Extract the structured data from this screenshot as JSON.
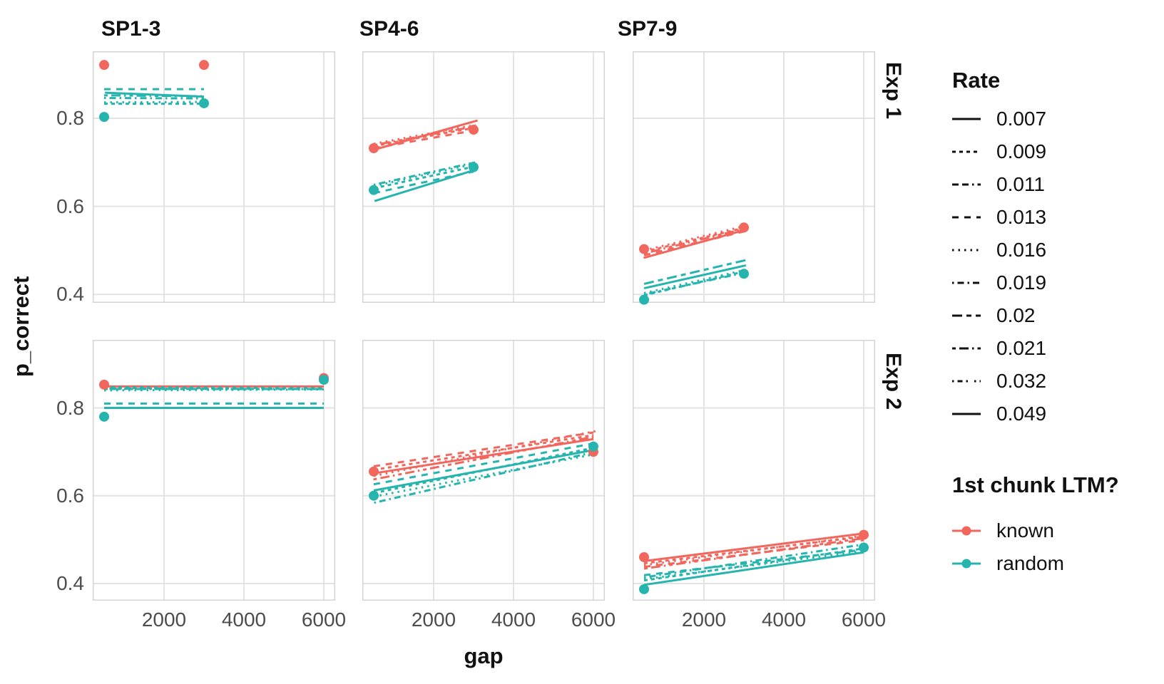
{
  "axes": {
    "x_label": "gap",
    "y_label": "p_correct"
  },
  "facets": {
    "columns": [
      "SP1-3",
      "SP4-6",
      "SP7-9"
    ],
    "rows": [
      "Exp 1",
      "Exp 2"
    ]
  },
  "legend": {
    "rate": {
      "title": "Rate",
      "items": [
        {
          "label": "0.007",
          "rate": "0.007"
        },
        {
          "label": "0.009",
          "rate": "0.009"
        },
        {
          "label": "0.011",
          "rate": "0.011"
        },
        {
          "label": "0.013",
          "rate": "0.013"
        },
        {
          "label": "0.016",
          "rate": "0.016"
        },
        {
          "label": "0.019",
          "rate": "0.019"
        },
        {
          "label": "0.02",
          "rate": "0.02"
        },
        {
          "label": "0.021",
          "rate": "0.021"
        },
        {
          "label": "0.032",
          "rate": "0.032"
        },
        {
          "label": "0.049",
          "rate": "0.049"
        }
      ]
    },
    "group": {
      "title": "1st chunk LTM?",
      "items": [
        {
          "label": "known",
          "group": "known"
        },
        {
          "label": "random",
          "group": "random"
        }
      ]
    }
  },
  "colors": {
    "known": "#F2675D",
    "random": "#26B4AE",
    "grid": "#E3E3E3",
    "panel_border": "#D4D4D4",
    "tick_text": "#4D4D4D",
    "text": "#111111"
  },
  "chart_data": {
    "type": "line",
    "title": "",
    "xlabel": "gap",
    "ylabel": "p_correct",
    "x_domain": [
      214,
      6286
    ],
    "x_ticks": [
      2000,
      4000,
      6000
    ],
    "y_ticks": [
      0.8,
      0.6,
      0.4
    ],
    "row_y_domains": [
      [
        0.381,
        0.952
      ],
      [
        0.361,
        0.955
      ]
    ],
    "grid": true,
    "legend_position": "right",
    "panels": [
      {
        "row": 0,
        "col": 0,
        "facet_row": "Exp 1",
        "facet_col": "SP1-3",
        "points": [
          {
            "group": "known",
            "x": 500,
            "y": 0.921
          },
          {
            "group": "known",
            "x": 3000,
            "y": 0.921
          },
          {
            "group": "random",
            "x": 500,
            "y": 0.803
          },
          {
            "group": "random",
            "x": 3000,
            "y": 0.834
          }
        ],
        "lines": [
          {
            "group": "random",
            "rate": "0.013",
            "x1": 500,
            "y1": 0.866,
            "x2": 3000,
            "y2": 0.866
          },
          {
            "group": "random",
            "rate": "0.049",
            "x1": 520,
            "y1": 0.858,
            "x2": 3000,
            "y2": 0.849
          },
          {
            "group": "random",
            "rate": "0.021",
            "x1": 500,
            "y1": 0.852,
            "x2": 3000,
            "y2": 0.85
          },
          {
            "group": "random",
            "rate": "0.019",
            "x1": 500,
            "y1": 0.846,
            "x2": 3000,
            "y2": 0.845
          },
          {
            "group": "random",
            "rate": "0.016",
            "x1": 500,
            "y1": 0.836,
            "x2": 3000,
            "y2": 0.837
          },
          {
            "group": "random",
            "rate": "0.009",
            "x1": 500,
            "y1": 0.833,
            "x2": 3000,
            "y2": 0.833
          }
        ]
      },
      {
        "row": 0,
        "col": 1,
        "facet_row": "Exp 1",
        "facet_col": "SP4-6",
        "points": [
          {
            "group": "known",
            "x": 500,
            "y": 0.732
          },
          {
            "group": "known",
            "x": 3000,
            "y": 0.774
          },
          {
            "group": "random",
            "x": 500,
            "y": 0.637
          },
          {
            "group": "random",
            "x": 3000,
            "y": 0.689
          }
        ],
        "lines": [
          {
            "group": "known",
            "rate": "0.049",
            "x1": 490,
            "y1": 0.728,
            "x2": 3100,
            "y2": 0.795
          },
          {
            "group": "known",
            "rate": "0.009",
            "x1": 500,
            "y1": 0.737,
            "x2": 3000,
            "y2": 0.778
          },
          {
            "group": "known",
            "rate": "0.013",
            "x1": 500,
            "y1": 0.732,
            "x2": 3000,
            "y2": 0.772
          },
          {
            "group": "known",
            "rate": "0.021",
            "x1": 500,
            "y1": 0.739,
            "x2": 3000,
            "y2": 0.781
          },
          {
            "group": "known",
            "rate": "0.016",
            "x1": 500,
            "y1": 0.742,
            "x2": 3050,
            "y2": 0.785
          },
          {
            "group": "random",
            "rate": "0.049",
            "x1": 520,
            "y1": 0.612,
            "x2": 3080,
            "y2": 0.684
          },
          {
            "group": "random",
            "rate": "0.016",
            "x1": 500,
            "y1": 0.646,
            "x2": 3000,
            "y2": 0.696
          },
          {
            "group": "random",
            "rate": "0.009",
            "x1": 500,
            "y1": 0.641,
            "x2": 3000,
            "y2": 0.69
          },
          {
            "group": "random",
            "rate": "0.013",
            "x1": 500,
            "y1": 0.63,
            "x2": 3000,
            "y2": 0.679
          },
          {
            "group": "random",
            "rate": "0.019",
            "x1": 500,
            "y1": 0.649,
            "x2": 3050,
            "y2": 0.7
          }
        ]
      },
      {
        "row": 0,
        "col": 2,
        "facet_row": "Exp 1",
        "facet_col": "SP7-9",
        "points": [
          {
            "group": "known",
            "x": 500,
            "y": 0.503
          },
          {
            "group": "known",
            "x": 3000,
            "y": 0.552
          },
          {
            "group": "random",
            "x": 500,
            "y": 0.388
          },
          {
            "group": "random",
            "x": 3000,
            "y": 0.447
          }
        ],
        "lines": [
          {
            "group": "known",
            "rate": "0.049",
            "x1": 490,
            "y1": 0.483,
            "x2": 3050,
            "y2": 0.547
          },
          {
            "group": "known",
            "rate": "0.009",
            "x1": 500,
            "y1": 0.497,
            "x2": 3000,
            "y2": 0.551
          },
          {
            "group": "known",
            "rate": "0.013",
            "x1": 500,
            "y1": 0.489,
            "x2": 3050,
            "y2": 0.544
          },
          {
            "group": "known",
            "rate": "0.016",
            "x1": 500,
            "y1": 0.5,
            "x2": 3050,
            "y2": 0.556
          },
          {
            "group": "known",
            "rate": "0.021",
            "x1": 500,
            "y1": 0.493,
            "x2": 3000,
            "y2": 0.549
          },
          {
            "group": "random",
            "rate": "0.02",
            "x1": 500,
            "y1": 0.424,
            "x2": 3100,
            "y2": 0.479
          },
          {
            "group": "random",
            "rate": "0.049",
            "x1": 500,
            "y1": 0.414,
            "x2": 3050,
            "y2": 0.466
          },
          {
            "group": "random",
            "rate": "0.009",
            "x1": 500,
            "y1": 0.398,
            "x2": 3000,
            "y2": 0.452
          },
          {
            "group": "random",
            "rate": "0.016",
            "x1": 500,
            "y1": 0.403,
            "x2": 3050,
            "y2": 0.456
          },
          {
            "group": "random",
            "rate": "0.019",
            "x1": 500,
            "y1": 0.4,
            "x2": 3000,
            "y2": 0.449
          }
        ]
      },
      {
        "row": 1,
        "col": 0,
        "facet_row": "Exp 2",
        "facet_col": "SP1-3",
        "points": [
          {
            "group": "known",
            "x": 500,
            "y": 0.853
          },
          {
            "group": "known",
            "x": 6000,
            "y": 0.868
          },
          {
            "group": "random",
            "x": 500,
            "y": 0.78
          },
          {
            "group": "random",
            "x": 6000,
            "y": 0.864
          }
        ],
        "lines": [
          {
            "group": "known",
            "rate": "0.049",
            "x1": 500,
            "y1": 0.849,
            "x2": 6000,
            "y2": 0.849
          },
          {
            "group": "known",
            "rate": "0.009",
            "x1": 500,
            "y1": 0.845,
            "x2": 6000,
            "y2": 0.846
          },
          {
            "group": "random",
            "rate": "0.009",
            "x1": 500,
            "y1": 0.847,
            "x2": 6000,
            "y2": 0.845
          },
          {
            "group": "random",
            "rate": "0.021",
            "x1": 500,
            "y1": 0.843,
            "x2": 6000,
            "y2": 0.843
          },
          {
            "group": "random",
            "rate": "0.019",
            "x1": 500,
            "y1": 0.844,
            "x2": 6000,
            "y2": 0.843
          },
          {
            "group": "random",
            "rate": "0.016",
            "x1": 500,
            "y1": 0.84,
            "x2": 6000,
            "y2": 0.842
          },
          {
            "group": "random",
            "rate": "0.013",
            "x1": 500,
            "y1": 0.81,
            "x2": 6000,
            "y2": 0.81
          },
          {
            "group": "random",
            "rate": "0.049",
            "x1": 500,
            "y1": 0.8,
            "x2": 6000,
            "y2": 0.8
          }
        ]
      },
      {
        "row": 1,
        "col": 1,
        "facet_row": "Exp 2",
        "facet_col": "SP4-6",
        "points": [
          {
            "group": "known",
            "x": 500,
            "y": 0.655
          },
          {
            "group": "known",
            "x": 6000,
            "y": 0.7
          },
          {
            "group": "random",
            "x": 500,
            "y": 0.6
          },
          {
            "group": "random",
            "x": 6000,
            "y": 0.712
          }
        ],
        "lines": [
          {
            "group": "known",
            "rate": "0.013",
            "x1": 500,
            "y1": 0.667,
            "x2": 6000,
            "y2": 0.744
          },
          {
            "group": "known",
            "rate": "0.016",
            "x1": 500,
            "y1": 0.645,
            "x2": 6100,
            "y2": 0.748
          },
          {
            "group": "known",
            "rate": "0.009",
            "x1": 500,
            "y1": 0.659,
            "x2": 6000,
            "y2": 0.738
          },
          {
            "group": "known",
            "rate": "0.049",
            "x1": 500,
            "y1": 0.651,
            "x2": 6000,
            "y2": 0.729
          },
          {
            "group": "known",
            "rate": "0.021",
            "x1": 490,
            "y1": 0.637,
            "x2": 6000,
            "y2": 0.734
          },
          {
            "group": "random",
            "rate": "0.013",
            "x1": 500,
            "y1": 0.626,
            "x2": 6000,
            "y2": 0.719
          },
          {
            "group": "random",
            "rate": "0.049",
            "x1": 500,
            "y1": 0.612,
            "x2": 6000,
            "y2": 0.704
          },
          {
            "group": "random",
            "rate": "0.009",
            "x1": 500,
            "y1": 0.606,
            "x2": 6000,
            "y2": 0.709
          },
          {
            "group": "random",
            "rate": "0.019",
            "x1": 510,
            "y1": 0.584,
            "x2": 6000,
            "y2": 0.699
          },
          {
            "group": "random",
            "rate": "0.016",
            "x1": 500,
            "y1": 0.598,
            "x2": 6000,
            "y2": 0.694
          }
        ]
      },
      {
        "row": 1,
        "col": 2,
        "facet_row": "Exp 2",
        "facet_col": "SP7-9",
        "points": [
          {
            "group": "known",
            "x": 500,
            "y": 0.46
          },
          {
            "group": "known",
            "x": 6000,
            "y": 0.511
          },
          {
            "group": "random",
            "x": 500,
            "y": 0.387
          },
          {
            "group": "random",
            "x": 6000,
            "y": 0.482
          }
        ],
        "lines": [
          {
            "group": "known",
            "rate": "0.049",
            "x1": 500,
            "y1": 0.451,
            "x2": 6000,
            "y2": 0.514
          },
          {
            "group": "known",
            "rate": "0.009",
            "x1": 500,
            "y1": 0.446,
            "x2": 6000,
            "y2": 0.507
          },
          {
            "group": "known",
            "rate": "0.016",
            "x1": 500,
            "y1": 0.442,
            "x2": 6000,
            "y2": 0.509
          },
          {
            "group": "known",
            "rate": "0.013",
            "x1": 500,
            "y1": 0.438,
            "x2": 6000,
            "y2": 0.499
          },
          {
            "group": "known",
            "rate": "0.021",
            "x1": 500,
            "y1": 0.434,
            "x2": 6000,
            "y2": 0.503
          },
          {
            "group": "random",
            "rate": "0.019",
            "x1": 500,
            "y1": 0.414,
            "x2": 6000,
            "y2": 0.489
          },
          {
            "group": "random",
            "rate": "0.013",
            "x1": 500,
            "y1": 0.419,
            "x2": 6000,
            "y2": 0.477
          },
          {
            "group": "random",
            "rate": "0.009",
            "x1": 500,
            "y1": 0.407,
            "x2": 6000,
            "y2": 0.48
          },
          {
            "group": "random",
            "rate": "0.016",
            "x1": 500,
            "y1": 0.41,
            "x2": 6000,
            "y2": 0.474
          },
          {
            "group": "random",
            "rate": "0.049",
            "x1": 500,
            "y1": 0.397,
            "x2": 6000,
            "y2": 0.471
          }
        ]
      }
    ]
  }
}
